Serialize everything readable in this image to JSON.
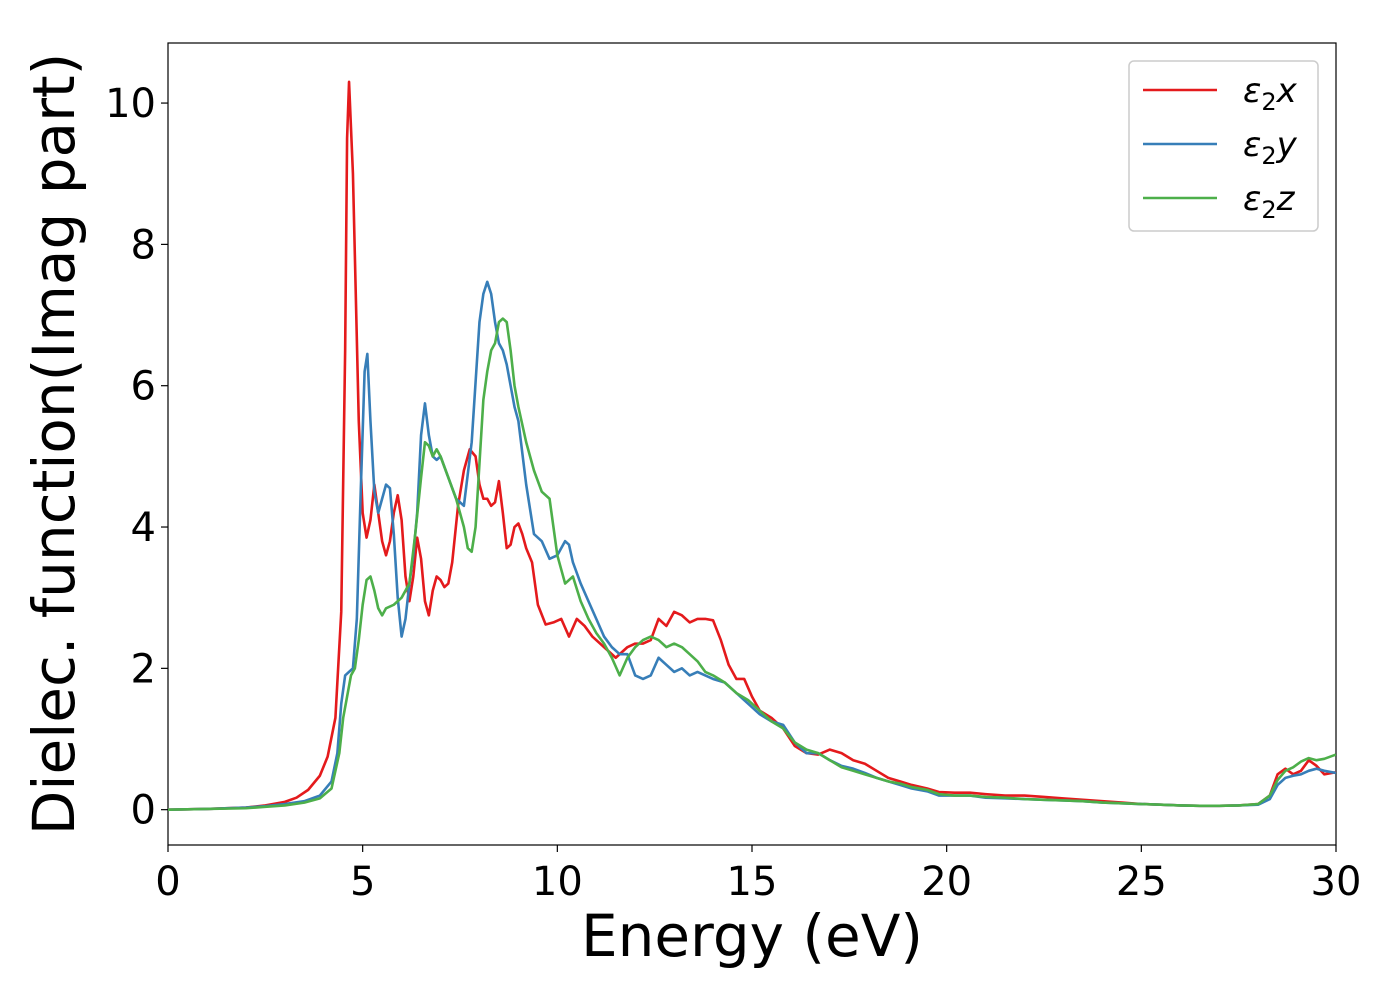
{
  "chart_data": {
    "type": "line",
    "xlabel": "Energy (eV)",
    "ylabel": "Dielec. function(Imag part)",
    "xlim": [
      0,
      30
    ],
    "ylim": [
      -0.5,
      10.85
    ],
    "xticks": [
      0,
      5,
      10,
      15,
      20,
      25,
      30
    ],
    "yticks": [
      0,
      2,
      4,
      6,
      8,
      10
    ],
    "grid": false,
    "legend_position": "top-right",
    "series": [
      {
        "name": "ε₂x",
        "legend": {
          "symbol": "ε",
          "sub": "2",
          "axis": "x"
        },
        "color": "#e41a1c",
        "x": [
          0,
          1,
          2,
          2.5,
          3,
          3.3,
          3.6,
          3.9,
          4.1,
          4.3,
          4.45,
          4.55,
          4.6,
          4.65,
          4.75,
          4.9,
          5.0,
          5.1,
          5.2,
          5.3,
          5.4,
          5.5,
          5.6,
          5.7,
          5.8,
          5.9,
          6.0,
          6.1,
          6.2,
          6.3,
          6.4,
          6.5,
          6.6,
          6.7,
          6.8,
          6.9,
          7.0,
          7.1,
          7.2,
          7.3,
          7.45,
          7.6,
          7.75,
          7.9,
          8.0,
          8.1,
          8.2,
          8.3,
          8.4,
          8.5,
          8.6,
          8.7,
          8.8,
          8.9,
          9.0,
          9.1,
          9.2,
          9.35,
          9.5,
          9.7,
          9.9,
          10.1,
          10.3,
          10.5,
          10.7,
          10.9,
          11.2,
          11.5,
          11.8,
          12.0,
          12.2,
          12.4,
          12.6,
          12.8,
          13.0,
          13.2,
          13.4,
          13.6,
          13.8,
          14.0,
          14.2,
          14.4,
          14.6,
          14.8,
          15.0,
          15.2,
          15.5,
          15.8,
          16.1,
          16.4,
          16.7,
          17.0,
          17.3,
          17.6,
          17.9,
          18.2,
          18.5,
          18.8,
          19.1,
          19.5,
          19.8,
          20.2,
          20.6,
          21.0,
          21.5,
          22.0,
          22.5,
          23.0,
          23.5,
          24.0,
          24.5,
          25.0,
          25.5,
          26.0,
          26.5,
          27.0,
          27.5,
          28.0,
          28.3,
          28.5,
          28.7,
          28.9,
          29.1,
          29.3,
          29.5,
          29.7,
          30.0
        ],
        "values": [
          0,
          0.01,
          0.03,
          0.06,
          0.11,
          0.17,
          0.28,
          0.48,
          0.75,
          1.3,
          2.8,
          6.5,
          9.5,
          10.3,
          9.0,
          5.5,
          4.2,
          3.85,
          4.1,
          4.6,
          4.2,
          3.8,
          3.6,
          3.8,
          4.2,
          4.45,
          4.1,
          3.3,
          2.95,
          3.3,
          3.85,
          3.55,
          2.95,
          2.75,
          3.1,
          3.3,
          3.25,
          3.15,
          3.2,
          3.5,
          4.3,
          4.8,
          5.1,
          5.0,
          4.6,
          4.4,
          4.4,
          4.3,
          4.35,
          4.65,
          4.2,
          3.7,
          3.75,
          4.0,
          4.05,
          3.9,
          3.7,
          3.5,
          2.9,
          2.62,
          2.65,
          2.7,
          2.45,
          2.7,
          2.6,
          2.45,
          2.3,
          2.15,
          2.3,
          2.35,
          2.35,
          2.4,
          2.7,
          2.6,
          2.8,
          2.75,
          2.65,
          2.7,
          2.7,
          2.68,
          2.4,
          2.05,
          1.85,
          1.85,
          1.6,
          1.4,
          1.3,
          1.15,
          0.9,
          0.8,
          0.78,
          0.85,
          0.8,
          0.7,
          0.65,
          0.55,
          0.45,
          0.4,
          0.35,
          0.3,
          0.25,
          0.24,
          0.24,
          0.22,
          0.2,
          0.2,
          0.18,
          0.16,
          0.14,
          0.12,
          0.1,
          0.08,
          0.07,
          0.06,
          0.055,
          0.055,
          0.06,
          0.08,
          0.2,
          0.5,
          0.58,
          0.5,
          0.55,
          0.7,
          0.62,
          0.5,
          0.53
        ]
      },
      {
        "name": "ε₂y",
        "legend": {
          "symbol": "ε",
          "sub": "2",
          "axis": "y"
        },
        "color": "#377eb8",
        "x": [
          0,
          1,
          2,
          2.5,
          3,
          3.5,
          3.9,
          4.2,
          4.35,
          4.45,
          4.55,
          4.65,
          4.75,
          4.85,
          4.95,
          5.05,
          5.12,
          5.2,
          5.3,
          5.4,
          5.5,
          5.6,
          5.7,
          5.8,
          5.9,
          6.0,
          6.1,
          6.2,
          6.3,
          6.4,
          6.5,
          6.6,
          6.7,
          6.8,
          6.9,
          7.0,
          7.2,
          7.4,
          7.6,
          7.8,
          8.0,
          8.1,
          8.2,
          8.3,
          8.4,
          8.5,
          8.6,
          8.7,
          8.8,
          8.9,
          9.0,
          9.2,
          9.4,
          9.6,
          9.8,
          10.0,
          10.2,
          10.3,
          10.4,
          10.6,
          10.8,
          11.0,
          11.2,
          11.4,
          11.6,
          11.8,
          12.0,
          12.2,
          12.4,
          12.6,
          12.8,
          13.0,
          13.2,
          13.4,
          13.6,
          13.8,
          14.0,
          14.3,
          14.6,
          14.9,
          15.2,
          15.5,
          15.8,
          16.1,
          16.4,
          16.7,
          17.0,
          17.3,
          17.6,
          17.9,
          18.2,
          18.5,
          18.8,
          19.1,
          19.5,
          19.8,
          20.2,
          20.6,
          21.0,
          21.5,
          22.0,
          22.5,
          23.0,
          23.5,
          24.0,
          24.5,
          25.0,
          25.5,
          26.0,
          26.5,
          27.0,
          27.5,
          28.0,
          28.3,
          28.5,
          28.7,
          28.9,
          29.1,
          29.3,
          29.5,
          29.7,
          30.0
        ],
        "values": [
          0,
          0.01,
          0.03,
          0.05,
          0.08,
          0.12,
          0.2,
          0.4,
          0.8,
          1.5,
          1.9,
          1.95,
          2.0,
          2.7,
          4.5,
          6.2,
          6.45,
          5.5,
          4.5,
          4.2,
          4.4,
          4.6,
          4.55,
          3.9,
          3.0,
          2.45,
          2.7,
          3.2,
          3.6,
          4.2,
          5.3,
          5.75,
          5.3,
          5.0,
          4.95,
          5.0,
          4.7,
          4.4,
          4.3,
          5.2,
          6.9,
          7.3,
          7.47,
          7.3,
          6.9,
          6.6,
          6.5,
          6.3,
          6.0,
          5.7,
          5.5,
          4.6,
          3.9,
          3.8,
          3.55,
          3.6,
          3.8,
          3.75,
          3.5,
          3.2,
          2.95,
          2.7,
          2.45,
          2.3,
          2.2,
          2.2,
          1.9,
          1.85,
          1.9,
          2.15,
          2.05,
          1.95,
          2.0,
          1.9,
          1.95,
          1.9,
          1.85,
          1.8,
          1.65,
          1.5,
          1.35,
          1.25,
          1.2,
          0.95,
          0.8,
          0.8,
          0.7,
          0.62,
          0.58,
          0.52,
          0.45,
          0.4,
          0.35,
          0.3,
          0.26,
          0.2,
          0.2,
          0.2,
          0.17,
          0.16,
          0.15,
          0.14,
          0.13,
          0.12,
          0.1,
          0.09,
          0.08,
          0.07,
          0.06,
          0.055,
          0.055,
          0.06,
          0.07,
          0.15,
          0.35,
          0.45,
          0.48,
          0.5,
          0.55,
          0.58,
          0.55,
          0.52
        ]
      },
      {
        "name": "ε₂z",
        "legend": {
          "symbol": "ε",
          "sub": "2",
          "axis": "z"
        },
        "color": "#4daf4a",
        "x": [
          0,
          1,
          2,
          2.5,
          3,
          3.5,
          3.9,
          4.2,
          4.4,
          4.5,
          4.6,
          4.7,
          4.8,
          4.9,
          5.0,
          5.1,
          5.2,
          5.3,
          5.4,
          5.5,
          5.6,
          5.8,
          6.0,
          6.2,
          6.35,
          6.5,
          6.6,
          6.7,
          6.8,
          6.9,
          7.0,
          7.2,
          7.4,
          7.6,
          7.7,
          7.8,
          7.9,
          8.0,
          8.1,
          8.2,
          8.3,
          8.4,
          8.5,
          8.6,
          8.7,
          8.8,
          8.9,
          9.0,
          9.2,
          9.4,
          9.6,
          9.8,
          10.0,
          10.2,
          10.4,
          10.6,
          10.8,
          11.0,
          11.2,
          11.4,
          11.6,
          11.8,
          12.0,
          12.2,
          12.4,
          12.6,
          12.8,
          13.0,
          13.2,
          13.4,
          13.6,
          13.8,
          14.0,
          14.3,
          14.6,
          14.9,
          15.2,
          15.5,
          15.8,
          16.1,
          16.4,
          16.7,
          17.0,
          17.3,
          17.6,
          17.9,
          18.2,
          18.5,
          18.8,
          19.1,
          19.5,
          19.8,
          20.2,
          20.6,
          21.0,
          21.5,
          22.0,
          22.5,
          23.0,
          23.5,
          24.0,
          24.5,
          25.0,
          25.5,
          26.0,
          26.5,
          27.0,
          27.5,
          28.0,
          28.3,
          28.5,
          28.7,
          28.9,
          29.1,
          29.3,
          29.5,
          29.7,
          30.0
        ],
        "values": [
          0,
          0.01,
          0.02,
          0.04,
          0.06,
          0.1,
          0.16,
          0.3,
          0.8,
          1.3,
          1.6,
          1.9,
          2.0,
          2.4,
          2.9,
          3.25,
          3.3,
          3.1,
          2.85,
          2.75,
          2.85,
          2.9,
          3.0,
          3.2,
          3.9,
          4.7,
          5.2,
          5.15,
          5.0,
          5.1,
          5.0,
          4.7,
          4.4,
          4.0,
          3.7,
          3.65,
          4.0,
          4.9,
          5.8,
          6.2,
          6.5,
          6.6,
          6.9,
          6.95,
          6.9,
          6.5,
          6.0,
          5.7,
          5.2,
          4.8,
          4.5,
          4.4,
          3.6,
          3.2,
          3.3,
          2.95,
          2.7,
          2.5,
          2.35,
          2.15,
          1.9,
          2.15,
          2.3,
          2.4,
          2.45,
          2.4,
          2.3,
          2.35,
          2.3,
          2.2,
          2.1,
          1.95,
          1.9,
          1.8,
          1.65,
          1.55,
          1.4,
          1.25,
          1.15,
          0.95,
          0.85,
          0.8,
          0.7,
          0.6,
          0.55,
          0.5,
          0.45,
          0.4,
          0.37,
          0.32,
          0.28,
          0.22,
          0.2,
          0.2,
          0.18,
          0.17,
          0.15,
          0.14,
          0.13,
          0.12,
          0.1,
          0.09,
          0.08,
          0.07,
          0.06,
          0.055,
          0.055,
          0.06,
          0.08,
          0.2,
          0.42,
          0.55,
          0.6,
          0.68,
          0.73,
          0.7,
          0.72,
          0.78
        ]
      }
    ]
  }
}
